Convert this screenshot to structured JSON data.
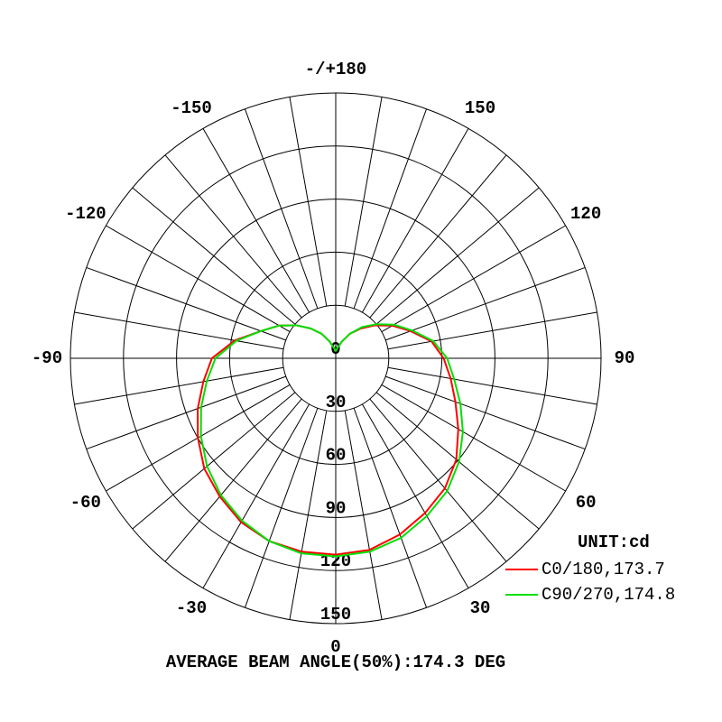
{
  "chart_data": {
    "type": "polar",
    "theta": [
      -180,
      -170,
      -160,
      -150,
      -140,
      -130,
      -120,
      -110,
      -100,
      -90,
      -80,
      -70,
      -60,
      -50,
      -40,
      -30,
      -20,
      -10,
      0,
      10,
      20,
      30,
      40,
      50,
      60,
      70,
      80,
      90,
      100,
      110,
      120,
      130,
      140,
      150,
      160,
      170,
      180
    ],
    "series": [
      {
        "name": "C0/180,173.7",
        "color": "#ff0000",
        "values": [
          4,
          6,
          10,
          16,
          22,
          29,
          37,
          45,
          58,
          70,
          76,
          83,
          90,
          97,
          102,
          107,
          110,
          111,
          111,
          110,
          106,
          101,
          96,
          89,
          80,
          72,
          66,
          61,
          55,
          45,
          37,
          29,
          22,
          16,
          10,
          6,
          4
        ]
      },
      {
        "name": "C90/270,174.8",
        "color": "#00e000",
        "values": [
          4,
          6,
          10,
          16,
          22,
          29,
          37,
          45,
          57,
          68,
          74,
          81,
          88,
          95,
          101,
          106,
          110,
          112,
          112,
          111,
          108,
          103,
          98,
          91,
          83,
          75,
          68,
          63,
          56,
          46,
          38,
          30,
          23,
          16,
          10,
          6,
          4
        ]
      }
    ],
    "rlim": [
      0,
      150
    ],
    "rticks": [
      0,
      30,
      60,
      90,
      120,
      150
    ],
    "thetaticks": [
      0,
      30,
      60,
      90,
      120,
      150,
      {
        "value": 180,
        "label": "-/+180"
      },
      -150,
      -120,
      -90,
      -60,
      -30
    ],
    "legend_title": "UNIT:cd",
    "footnote": "AVERAGE BEAM ANGLE(50%):174.3 DEG"
  }
}
